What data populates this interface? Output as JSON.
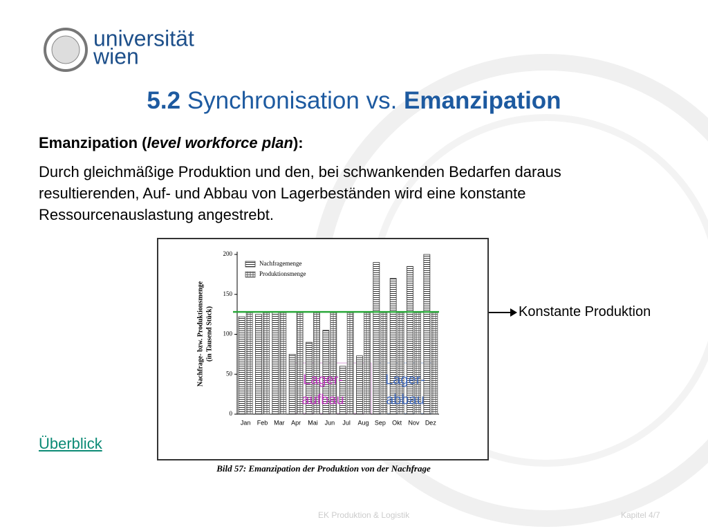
{
  "logo": {
    "line1": "universität",
    "line2": "wien"
  },
  "title": {
    "number": "5.2",
    "middle": "Synchronisation vs.",
    "end": "Emanzipation"
  },
  "subheading": {
    "start": "Emanzipation (",
    "italic": "level workforce plan",
    "end": "):"
  },
  "body": "Durch gleichmäßige Produktion und den, bei schwankenden Bedarfen daraus resultierenden, Auf- und Abbau von Lagerbeständen wird eine konstante Ressourcenauslastung angestrebt.",
  "link": "Überblick",
  "callout": "Konstante Produktion",
  "footer": {
    "course": "EK Produktion & Logistik",
    "chapter": "Kapitel 4/7"
  },
  "chart_data": {
    "type": "bar",
    "y_label": [
      "Nachfrage- bzw. Produktionsmenge",
      "(in Tausend Stück)"
    ],
    "caption": "Bild 57: Emanzipation der Produktion von der Nachfrage",
    "categories": [
      "Jan",
      "Feb",
      "Mar",
      "Apr",
      "Mai",
      "Jun",
      "Jul",
      "Aug",
      "Sep",
      "Okt",
      "Nov",
      "Dez"
    ],
    "series": [
      {
        "name": "Nachfragemenge",
        "color": "#333333",
        "pattern": "horizontal",
        "values": [
          122,
          125,
          128,
          75,
          90,
          105,
          60,
          73,
          190,
          170,
          185,
          200
        ]
      },
      {
        "name": "Produktionsmenge",
        "color": "#555555",
        "pattern": "grid",
        "values": [
          127,
          127,
          127,
          127,
          127,
          127,
          127,
          127,
          127,
          127,
          127,
          127
        ]
      }
    ],
    "ylim": [
      0,
      200
    ],
    "yticks": [
      0,
      50,
      100,
      150,
      200
    ],
    "constant_line": {
      "value": 128,
      "color": "#2aa83a"
    },
    "annotations": [
      {
        "lines": [
          "Lager-",
          "aufbau"
        ],
        "color": "#c020c0"
      },
      {
        "lines": [
          "Lager-",
          "abbau"
        ],
        "color": "#3060c0"
      }
    ]
  }
}
